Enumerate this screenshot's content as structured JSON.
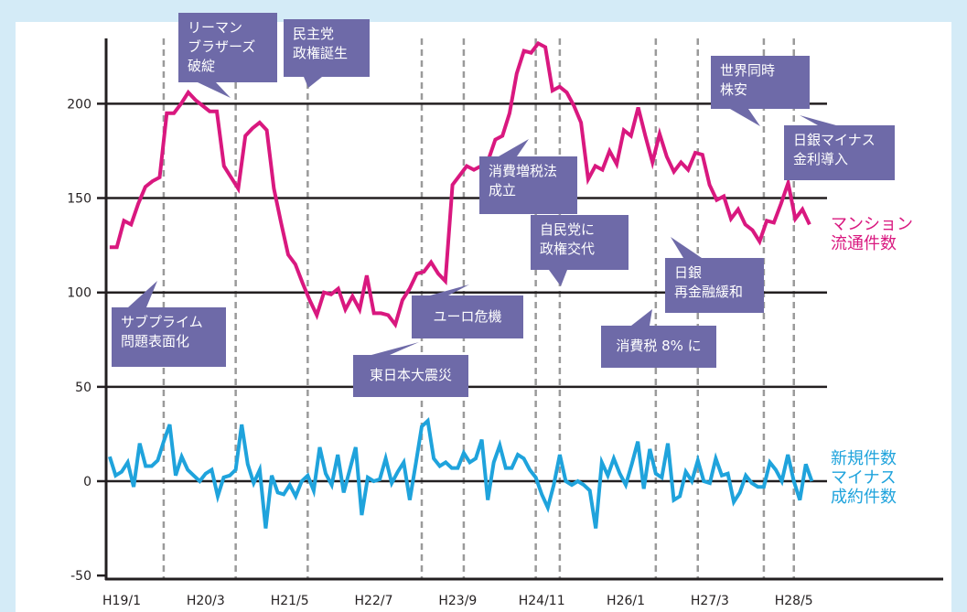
{
  "chart_data": {
    "type": "line",
    "title": "",
    "xlabel": "",
    "ylabel": "",
    "ylim": [
      -50,
      230
    ],
    "yticks": [
      200,
      150,
      100,
      50,
      0,
      -50
    ],
    "ytick_labels": [
      "200",
      "150",
      "100",
      "50",
      "0",
      "-50"
    ],
    "x_unit": "months since H19/1",
    "xticks": [
      0,
      14,
      28,
      42,
      56,
      70,
      84,
      98,
      112
    ],
    "xtick_labels": [
      "H19/1",
      "H20/3",
      "H21/5",
      "H22/7",
      "H23/9",
      "H24/11",
      "H26/1",
      "H27/3",
      "H28/5"
    ],
    "event_months": [
      7,
      19,
      31,
      50,
      57,
      69,
      73,
      89,
      96,
      107,
      112
    ],
    "x_start": -2,
    "grid": "horizontal",
    "series": [
      {
        "name": "マンション\n流通件数",
        "color": "#d9187f",
        "values": [
          124,
          124,
          138,
          136,
          147,
          156,
          159,
          161,
          195,
          195,
          200,
          206,
          202,
          199,
          196,
          196,
          167,
          161,
          155,
          183,
          187,
          190,
          186,
          155,
          137,
          120,
          115,
          105,
          96,
          88,
          100,
          99,
          102,
          91,
          98,
          91,
          109,
          89,
          89,
          88,
          83,
          96,
          102,
          110,
          111,
          116,
          110,
          106,
          157,
          162,
          167,
          165,
          167,
          170,
          181,
          183,
          195,
          216,
          228,
          227,
          232,
          230,
          207,
          209,
          206,
          199,
          190,
          160,
          167,
          165,
          175,
          168,
          186,
          183,
          198,
          183,
          169,
          184,
          172,
          164,
          169,
          165,
          174,
          173,
          157,
          149,
          151,
          139,
          144,
          136,
          133,
          127,
          138,
          137,
          147,
          158,
          139,
          144,
          136
        ]
      },
      {
        "name": "新規件数\nマイナス\n成約件数",
        "color": "#1fa3dc",
        "values": [
          13,
          3,
          5,
          10,
          -3,
          20,
          8,
          8,
          11,
          21,
          30,
          3,
          13,
          6,
          3,
          0,
          4,
          6,
          -8,
          2,
          3,
          6,
          30,
          9,
          -1,
          6,
          -25,
          3,
          -6,
          -7,
          -2,
          -8,
          0,
          3,
          -5,
          18,
          4,
          -2,
          14,
          -6,
          6,
          18,
          -18,
          2,
          0,
          1,
          12,
          -1,
          5,
          10,
          -10,
          9,
          29,
          32,
          12,
          8,
          10,
          7,
          7,
          15,
          10,
          12,
          22,
          -10,
          10,
          19,
          7,
          7,
          14,
          12,
          6,
          2,
          -7,
          -14,
          -2,
          14,
          0,
          -2,
          0,
          -2,
          -5,
          -25,
          10,
          3,
          12,
          4,
          -2,
          9,
          21,
          -4,
          17,
          4,
          2,
          20,
          -10,
          -8,
          5,
          0,
          11,
          0,
          -1,
          12,
          3,
          4,
          -11,
          -6,
          3,
          -1,
          -3,
          -3,
          10,
          6,
          0,
          14,
          0,
          -10,
          9,
          0
        ]
      }
    ],
    "annotations": [
      {
        "text": "リーマン\nブラザーズ\n破綻"
      },
      {
        "text": "民主党\n政権誕生"
      },
      {
        "text": "消費増税法\n成立"
      },
      {
        "text": "世界同時\n株安"
      },
      {
        "text": "日銀マイナス\n金利導入"
      },
      {
        "text": "自民党に\n政権交代"
      },
      {
        "text": "日銀\n再金融緩和"
      },
      {
        "text": "サブプライム\n問題表面化"
      },
      {
        "text": "ユーロ危機"
      },
      {
        "text": "消費税 8% に"
      },
      {
        "text": "東日本大震災"
      }
    ]
  }
}
